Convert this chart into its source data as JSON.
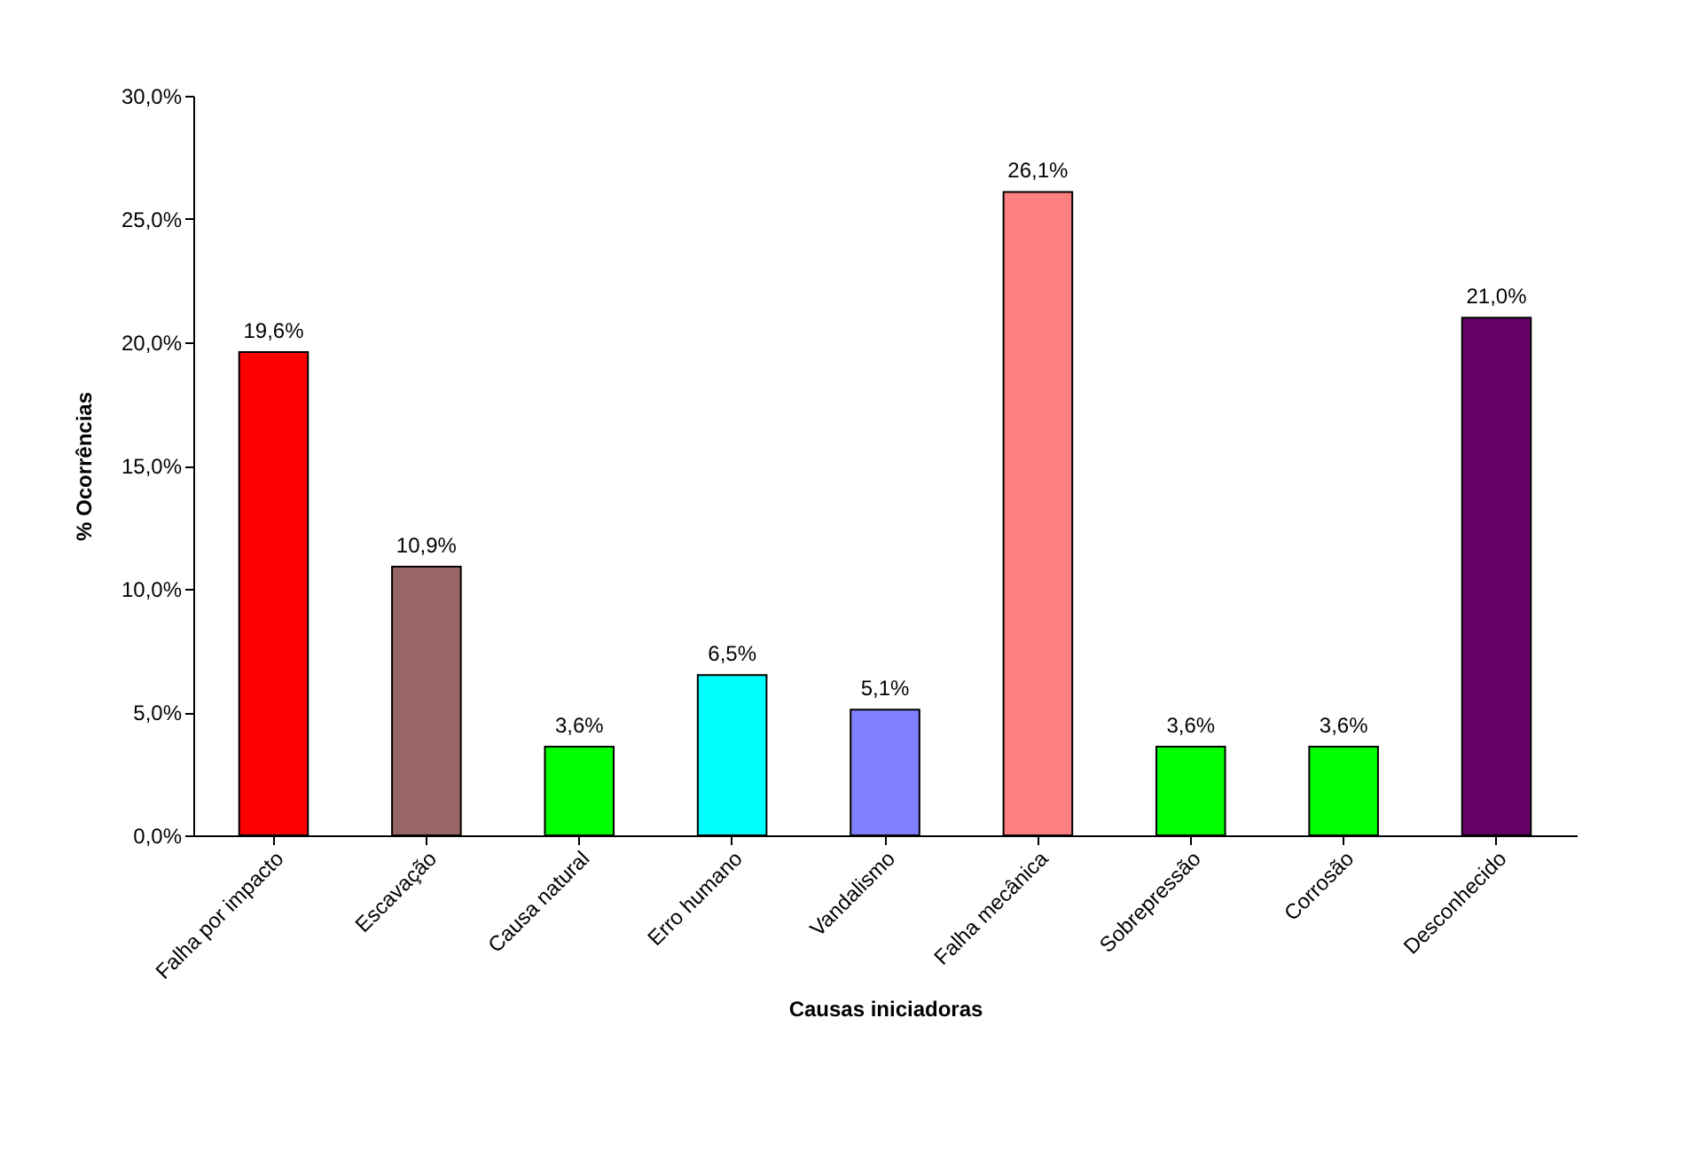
{
  "chart_data": {
    "type": "bar",
    "xlabel": "Causas iniciadoras",
    "ylabel": "% Ocorrências",
    "categories": [
      "Falha por impacto",
      "Escavação",
      "Causa natural",
      "Erro humano",
      "Vandalismo",
      "Falha mecânica",
      "Sobrepressão",
      "Corrosão",
      "Desconhecido"
    ],
    "values": [
      19.6,
      10.9,
      3.6,
      6.5,
      5.1,
      26.1,
      3.6,
      3.6,
      21.0
    ],
    "colors": [
      "#ff0000",
      "#996666",
      "#00ff00",
      "#00ffff",
      "#8080ff",
      "#ff8080",
      "#00ff00",
      "#00ff00",
      "#660066"
    ],
    "value_labels": [
      "19,6%",
      "10,9%",
      "3,6%",
      "6,5%",
      "5,1%",
      "26,1%",
      "3,6%",
      "3,6%",
      "21,0%"
    ],
    "ylim": [
      0,
      30
    ],
    "yticks": [
      {
        "value": 0,
        "label": "0,0%"
      },
      {
        "value": 5,
        "label": "5,0%"
      },
      {
        "value": 10,
        "label": "10,0%"
      },
      {
        "value": 15,
        "label": "15,0%"
      },
      {
        "value": 20,
        "label": "20,0%"
      },
      {
        "value": 25,
        "label": "25,0%"
      },
      {
        "value": 30,
        "label": "30,0%"
      }
    ],
    "grid": false
  }
}
